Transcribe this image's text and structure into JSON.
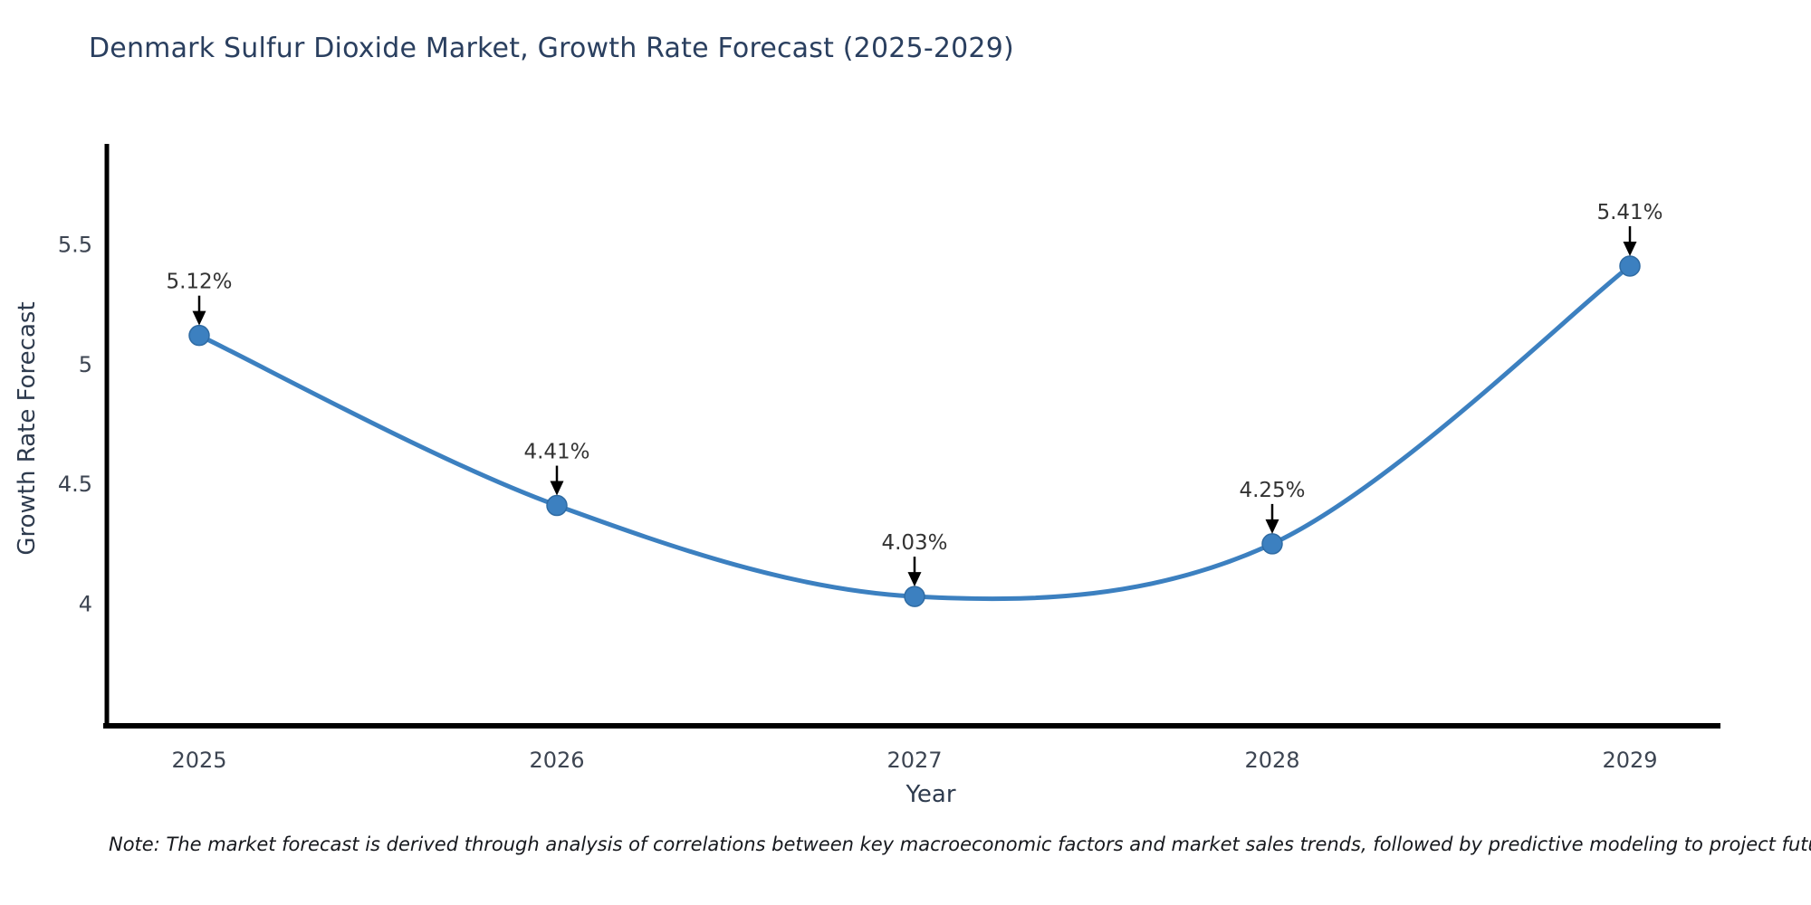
{
  "title": {
    "text": "Denmark Sulfur Dioxide Market, Growth Rate Forecast (2025-2029)"
  },
  "note": {
    "text": "Note: The market forecast is derived through analysis of correlations between key macroeconomic factors and market sales trends, followed by predictive modeling to project future sales"
  },
  "chart_data": {
    "type": "line",
    "title": "Denmark Sulfur Dioxide Market, Growth Rate Forecast (2025-2029)",
    "x": [
      2025,
      2026,
      2027,
      2028,
      2029
    ],
    "series": [
      {
        "name": "Growth Rate Forecast",
        "values": [
          5.12,
          4.41,
          4.03,
          4.25,
          5.41
        ]
      }
    ],
    "point_labels": [
      "5.12%",
      "4.41%",
      "4.03%",
      "4.25%",
      "5.41%"
    ],
    "xlabel": "Year",
    "ylabel": "Growth Rate Forecast",
    "xtick_labels": [
      "2025",
      "2026",
      "2027",
      "2028",
      "2029"
    ],
    "yticks": [
      4,
      4.5,
      5,
      5.5
    ],
    "ytick_labels": [
      "4",
      "4.5",
      "5",
      "5.5"
    ],
    "ylim": [
      3.49,
      5.92
    ],
    "line_shape": "spline",
    "grid": false,
    "legend": "none",
    "colors": {
      "line": "#3c80c0",
      "marker": "#3c80c0",
      "marker_edge": "#2f6ba3",
      "axis": "#000000",
      "title": "#2a3f5f",
      "axis_title": "#2e3b4e",
      "tick": "#3d4552",
      "annotation": "#333333",
      "arrow": "#000000"
    }
  }
}
